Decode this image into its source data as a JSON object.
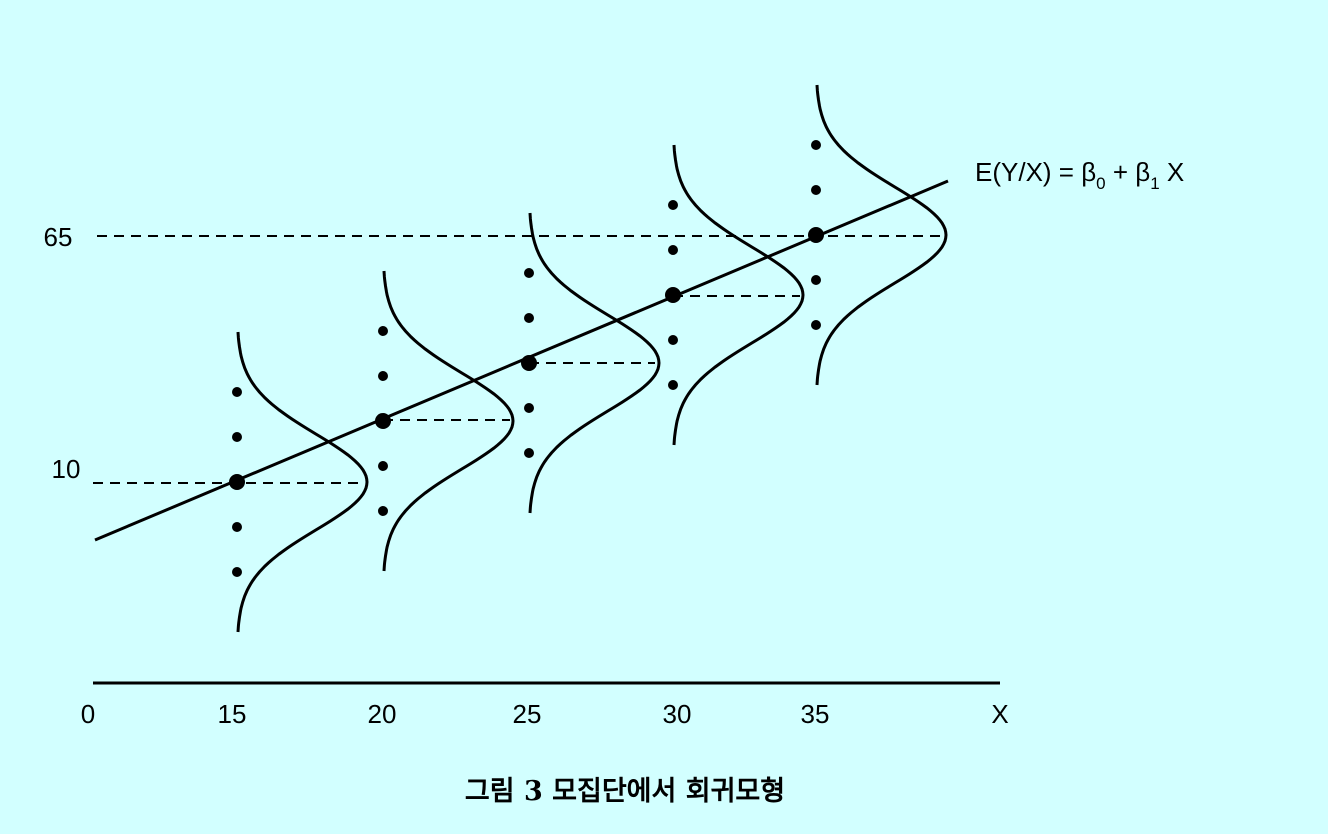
{
  "x_axis": {
    "labels": [
      "0",
      "15",
      "20",
      "25",
      "30",
      "35",
      "X"
    ]
  },
  "y_axis": {
    "labels": [
      "65",
      "10"
    ]
  },
  "equation": [
    "E(Y/X) = β",
    "0",
    " + β",
    "1",
    " X"
  ],
  "caption": "그림 3 모집단에서 회귀모형"
}
